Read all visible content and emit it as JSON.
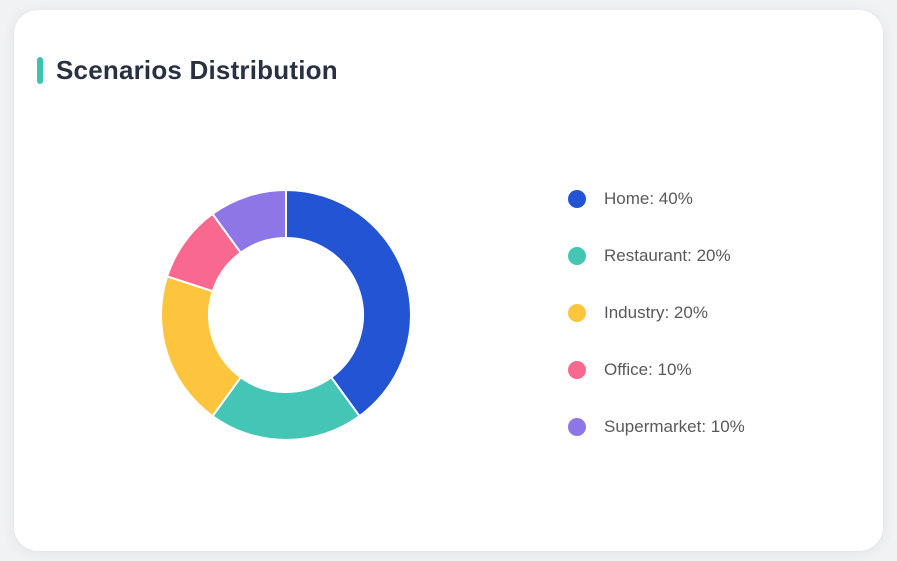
{
  "page": {
    "background_color": "#f1f2f4",
    "card_background": "#ffffff"
  },
  "card": {
    "title": "Scenarios Distribution",
    "accent_color": "#3bc4ae",
    "title_color": "#273142"
  },
  "chart_data": {
    "type": "pie",
    "subtype": "donut",
    "title": "Scenarios Distribution",
    "start_angle": "top",
    "direction": "clockwise",
    "inner_radius_px": 77,
    "outer_radius_px": 125,
    "segment_gap_color": "#ffffff",
    "segments": [
      {
        "label": "Home",
        "value": 40,
        "color": "#2254d3"
      },
      {
        "label": "Restaurant",
        "value": 20,
        "color": "#44c5b6"
      },
      {
        "label": "Industry",
        "value": 20,
        "color": "#fdc53d"
      },
      {
        "label": "Office",
        "value": 10,
        "color": "#f9688e"
      },
      {
        "label": "Supermarket",
        "value": 10,
        "color": "#8e76e7"
      }
    ],
    "legend": {
      "position": "right",
      "text_color": "#595959",
      "items": [
        {
          "label": "Home: 40%",
          "color": "#2254d3"
        },
        {
          "label": "Restaurant: 20%",
          "color": "#44c5b6"
        },
        {
          "label": "Industry: 20%",
          "color": "#fdc53d"
        },
        {
          "label": "Office: 10%",
          "color": "#f9688e"
        },
        {
          "label": "Supermarket: 10%",
          "color": "#8e76e7"
        }
      ]
    }
  }
}
